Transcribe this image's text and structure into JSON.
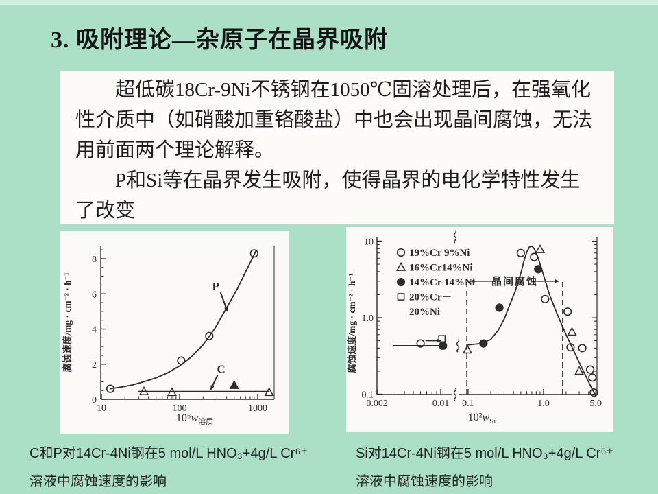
{
  "slide": {
    "title": "3. 吸附理论—杂原子在晶界吸附",
    "bg_color": "#abdfc6",
    "box_color": "#fcfbf8",
    "ink_color": "#2b2b2b"
  },
  "text_box": {
    "paragraphs": [
      "超低碳18Cr-9Ni不锈钢在1050℃固溶处理后，在强氧化性介质中（如硝酸加重铬酸盐）中也会出现晶间腐蚀，无法用前面两个理论解释。",
      "P和Si等在晶界发生吸附，使得晶界的电化学特性发生了改变"
    ]
  },
  "captions": {
    "left": {
      "lines": [
        "C和P对14Cr-4Ni钢在5 mol/L HNO₃+4g/L Cr⁶⁺",
        "溶液中腐蚀速度的影响"
      ]
    },
    "right": {
      "lines": [
        "Si对14Cr-4Ni钢在5 mol/L HNO₃+4g/L Cr⁶⁺",
        "溶液中腐蚀速度的影响"
      ]
    }
  },
  "chart_data": [
    {
      "type": "scatter",
      "xscale": "log",
      "yscale": "linear",
      "xlim": [
        10,
        1600
      ],
      "ylim": [
        0,
        8.8
      ],
      "xticks": [
        10,
        100,
        1000
      ],
      "xtick_labels": [
        "10",
        "100",
        "1000"
      ],
      "yticks": [
        0,
        2,
        4,
        6,
        8
      ],
      "xlabel_main": "10⁶",
      "xlabel_var": "w",
      "xlabel_sub": "溶质",
      "ylabel": "腐蚀速度/mg · cm⁻² · h⁻¹",
      "series": [
        {
          "name": "P",
          "marker": "circle",
          "filled": false,
          "points": [
            [
              13,
              0.6
            ],
            [
              105,
              2.2
            ],
            [
              240,
              3.6
            ],
            [
              900,
              8.3
            ]
          ]
        },
        {
          "name": "C",
          "marker": "triangle",
          "filled": false,
          "points": [
            [
              35,
              0.45
            ],
            [
              80,
              0.4
            ],
            [
              1400,
              0.4
            ]
          ]
        },
        {
          "name": "C-filled",
          "marker": "triangle",
          "filled": true,
          "points": [
            [
              500,
              0.8
            ]
          ]
        }
      ],
      "curve_P": [
        [
          13,
          0.6
        ],
        [
          18,
          0.7
        ],
        [
          25,
          0.82
        ],
        [
          35,
          1.0
        ],
        [
          50,
          1.22
        ],
        [
          70,
          1.5
        ],
        [
          100,
          1.9
        ],
        [
          140,
          2.4
        ],
        [
          200,
          3.1
        ],
        [
          280,
          4.0
        ],
        [
          400,
          5.2
        ],
        [
          550,
          6.3
        ],
        [
          700,
          7.25
        ],
        [
          850,
          8.0
        ],
        [
          950,
          8.45
        ]
      ],
      "line_C": [
        [
          30,
          0.45
        ],
        [
          1400,
          0.45
        ]
      ],
      "point_labels": [
        {
          "text": "P",
          "x": 290,
          "y": 6.4,
          "tip_x": 410,
          "tip_y": 5.0
        },
        {
          "text": "C",
          "x": 340,
          "y": 1.7,
          "tip_x": 250,
          "tip_y": 0.55
        }
      ]
    },
    {
      "type": "scatter",
      "xscale": "log-broken",
      "yscale": "log",
      "xlim": [
        0.002,
        5
      ],
      "ylim": [
        0.1,
        10
      ],
      "xticks": [
        0.002,
        0.01,
        0.1,
        1,
        5
      ],
      "xtick_labels": [
        "0.002",
        "0.01",
        "0.1",
        "1.0",
        "5.0"
      ],
      "yticks": [
        0.1,
        1,
        10
      ],
      "ytick_labels": [
        "0.1",
        "1.0",
        "10"
      ],
      "xlabel_main": "10²",
      "xlabel_var": "w",
      "xlabel_sub": "Si",
      "ylabel": "腐蚀速度/mg · cm⁻² · h⁻¹",
      "legend": [
        {
          "marker": "circle",
          "filled": false,
          "label": "19%Cr 9%Ni"
        },
        {
          "marker": "triangle",
          "filled": false,
          "label": "16%Cr14%Ni"
        },
        {
          "marker": "circle",
          "filled": true,
          "label": "14%Cr 14%Ni"
        },
        {
          "marker": "square",
          "filled": false,
          "label": "20%Cr－"
        },
        {
          "marker": "none",
          "filled": false,
          "label": "20%Ni"
        }
      ],
      "band": {
        "label": "晶间腐蚀",
        "x1": 0.09,
        "x2": 1.8,
        "y": 3
      },
      "series": [
        {
          "name": "19%Cr 9%Ni",
          "marker": "circle",
          "filled": false,
          "points": [
            [
              0.006,
              0.46
            ],
            [
              0.5,
              7.0
            ],
            [
              0.75,
              6.2
            ],
            [
              1.05,
              1.75
            ],
            [
              2.1,
              1.2
            ],
            [
              2.3,
              0.41
            ],
            [
              3.3,
              0.4
            ],
            [
              4.2,
              0.21
            ],
            [
              4.5,
              0.165
            ],
            [
              4.7,
              0.105
            ]
          ]
        },
        {
          "name": "16%Cr14%Ni",
          "marker": "triangle",
          "filled": false,
          "points": [
            [
              0.095,
              0.38
            ],
            [
              0.9,
              7.8
            ],
            [
              2.4,
              0.65
            ],
            [
              3.0,
              0.2
            ]
          ]
        },
        {
          "name": "14%Cr 14%Ni",
          "marker": "circle",
          "filled": true,
          "points": [
            [
              0.012,
              0.43
            ],
            [
              0.16,
              0.46
            ],
            [
              0.26,
              1.35
            ],
            [
              0.85,
              4.3
            ]
          ]
        },
        {
          "name": "20%Cr-20%Ni",
          "marker": "square",
          "filled": false,
          "points": [
            [
              0.011,
              0.53
            ]
          ]
        }
      ],
      "curve_main": [
        [
          0.1,
          0.44
        ],
        [
          0.15,
          0.46
        ],
        [
          0.2,
          0.52
        ],
        [
          0.25,
          0.68
        ],
        [
          0.3,
          0.95
        ],
        [
          0.35,
          1.4
        ],
        [
          0.42,
          2.2
        ],
        [
          0.5,
          3.8
        ],
        [
          0.55,
          5.5
        ],
        [
          0.6,
          7.2
        ],
        [
          0.65,
          8.4
        ],
        [
          0.7,
          8.6
        ],
        [
          0.75,
          8.0
        ],
        [
          0.85,
          6.0
        ],
        [
          1.0,
          3.6
        ],
        [
          1.2,
          2.0
        ],
        [
          1.5,
          1.15
        ],
        [
          2.0,
          0.6
        ],
        [
          2.5,
          0.38
        ],
        [
          3.0,
          0.26
        ],
        [
          3.5,
          0.19
        ],
        [
          4.0,
          0.145
        ],
        [
          4.5,
          0.115
        ],
        [
          5.0,
          0.095
        ]
      ],
      "curve_flat": [
        [
          0.003,
          0.43
        ],
        [
          0.013,
          0.43
        ]
      ],
      "arrow": {
        "x1": 0.0068,
        "x2": 0.0105,
        "y": 0.5
      }
    }
  ]
}
